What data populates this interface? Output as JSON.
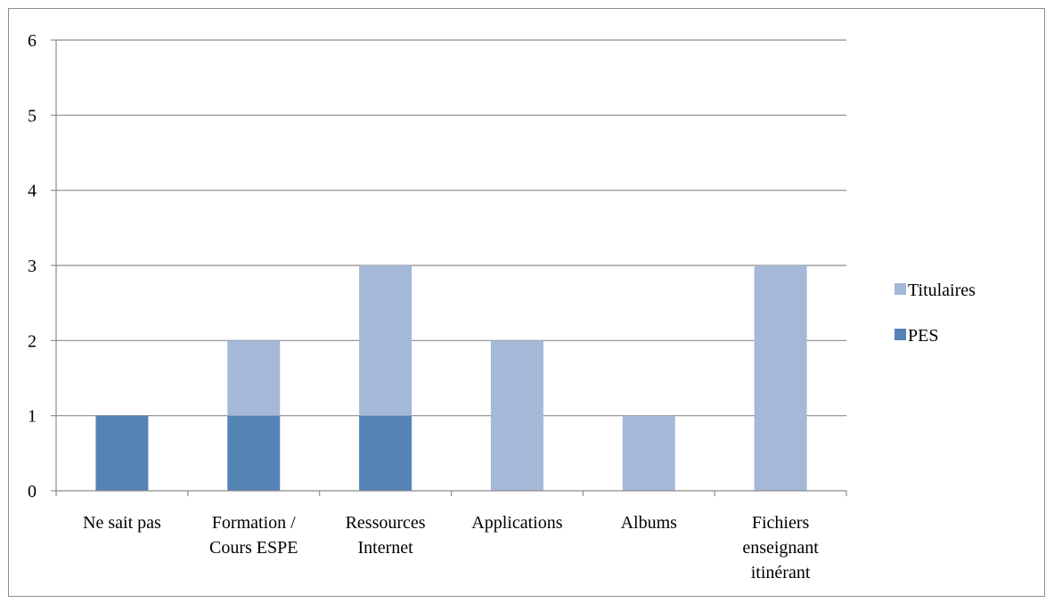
{
  "chart_data": {
    "type": "bar",
    "stacked": true,
    "categories": [
      [
        "Ne sait pas"
      ],
      [
        "Formation /",
        "Cours ESPE"
      ],
      [
        "Ressources",
        "Internet"
      ],
      [
        "Applications"
      ],
      [
        "Albums"
      ],
      [
        "Fichiers",
        "enseignant",
        "itinérant"
      ]
    ],
    "series": [
      {
        "name": "PES",
        "values": [
          1,
          1,
          1,
          0,
          0,
          0
        ],
        "color": "#5583b5"
      },
      {
        "name": "Titulaires",
        "values": [
          0,
          1,
          2,
          2,
          1,
          3
        ],
        "color": "#a5b8d8"
      }
    ],
    "ylim": [
      0,
      6
    ],
    "yticks": [
      "0",
      "1",
      "2",
      "3",
      "4",
      "5",
      "6"
    ],
    "grid": true,
    "legend_position": "right"
  }
}
